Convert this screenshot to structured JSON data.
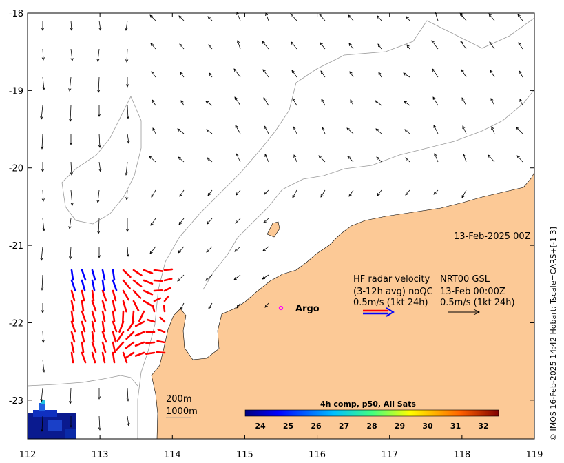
{
  "map": {
    "date_label": "13-Feb-2025 00Z",
    "x_ticks": [
      "112",
      "113",
      "114",
      "115",
      "116",
      "117",
      "118",
      "119"
    ],
    "y_ticks": [
      "-18",
      "-19",
      "-20",
      "-21",
      "-22",
      "-23"
    ],
    "lon_range": [
      112,
      119
    ],
    "lat_range": [
      -23.5,
      -18
    ]
  },
  "legend": {
    "hf_line1": "HF radar velocity",
    "hf_line2": "(3-12h avg) noQC",
    "hf_line3": "0.5m/s (1kt 24h)",
    "nrt_line1": "NRT00 GSL",
    "nrt_line2": "13-Feb 00:00Z",
    "nrt_line3": "0.5m/s (1kt 24h)",
    "argo_label": "Argo"
  },
  "isobaths": {
    "label1": "200m",
    "label2": "1000m"
  },
  "colorbar": {
    "title": "4h comp, p50, All Sats",
    "ticks": [
      "24",
      "25",
      "26",
      "27",
      "28",
      "29",
      "30",
      "31",
      "32"
    ],
    "colors": [
      "#00007f",
      "#0000ff",
      "#007fff",
      "#00ffff",
      "#7fff7f",
      "#ffff00",
      "#ff7f00",
      "#ff0000",
      "#7f0000"
    ]
  },
  "credit": "© IMOS 16-Feb-2025 14:42 Hobart; Tscale=CARS+[-1 3]"
}
